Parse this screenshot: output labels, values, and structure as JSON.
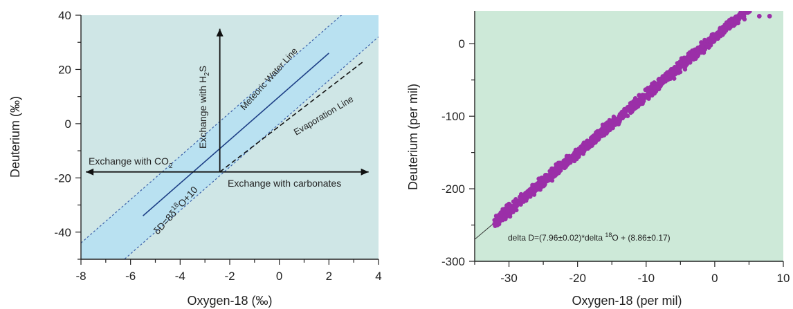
{
  "chart_data": [
    {
      "type": "line",
      "xlabel": "Oxygen-18 (‰)",
      "ylabel": "Deuterium (‰)",
      "xlim": [
        -8,
        4
      ],
      "ylim": [
        -50,
        40
      ],
      "xticks": [
        -8,
        -6,
        -4,
        -2,
        0,
        2,
        4
      ],
      "yticks": [
        -40,
        -20,
        0,
        20,
        40
      ],
      "colors": {
        "plot_bg": "#cfe6e6",
        "band": "#b9e1f1",
        "band_edge": "#3a5fa8",
        "line": "#1d3f86",
        "arrow": "#111111"
      },
      "series": [
        {
          "name": "Meteoric Water Line",
          "points": [
            [
              -5.5,
              -34
            ],
            [
              2.0,
              26
            ]
          ]
        },
        {
          "name": "Evaporation Line",
          "points": [
            [
              -2.4,
              -17.8
            ],
            [
              3.4,
              23
            ]
          ]
        }
      ],
      "band": {
        "lower_offset": -10,
        "upper_offset": 10
      },
      "origin": [
        -2.4,
        -17.8
      ],
      "arrows": [
        {
          "label": "Exchange with H2S",
          "to": [
            -2.4,
            35
          ]
        },
        {
          "label": "Exchange with CO2",
          "to": [
            -7.8,
            -17.8
          ]
        },
        {
          "label": "Exchange with carbonates",
          "to": [
            3.6,
            -17.8
          ]
        }
      ],
      "annotations": {
        "mwl": "Meteoric Water Line",
        "evap": "Evaporation Line",
        "h2s_prefix": "Exchange with H",
        "h2s_sub": "2",
        "h2s_suffix": "S",
        "co2_prefix": "Exchange with CO",
        "co2_sub": "2",
        "carb": "Exchange with carbonates",
        "eq_prefix": "δD=8δ",
        "eq_sup": "18",
        "eq_suffix": "O+10"
      }
    },
    {
      "type": "scatter",
      "xlabel": "Oxygen-18 (per mil)",
      "ylabel": "Deuterium (per mil)",
      "xlim": [
        -35,
        10
      ],
      "ylim": [
        -300,
        45
      ],
      "xticks": [
        -30,
        -20,
        -10,
        0,
        10
      ],
      "yticks": [
        -300,
        -200,
        -100,
        0
      ],
      "colors": {
        "plot_bg": "#cde9d8",
        "points": "#9b2fa8",
        "fit": "#333333"
      },
      "fit": {
        "slope": 7.96,
        "intercept": 8.86
      },
      "point_range": {
        "x_min": -32,
        "x_max": 5
      },
      "extra_points": [
        [
          6.5,
          38
        ],
        [
          8,
          38
        ]
      ],
      "annotation": {
        "prefix": "delta D=(7.96±0.02)*delta ",
        "sup": "18",
        "suffix": "O + (8.86±0.17)"
      }
    }
  ]
}
